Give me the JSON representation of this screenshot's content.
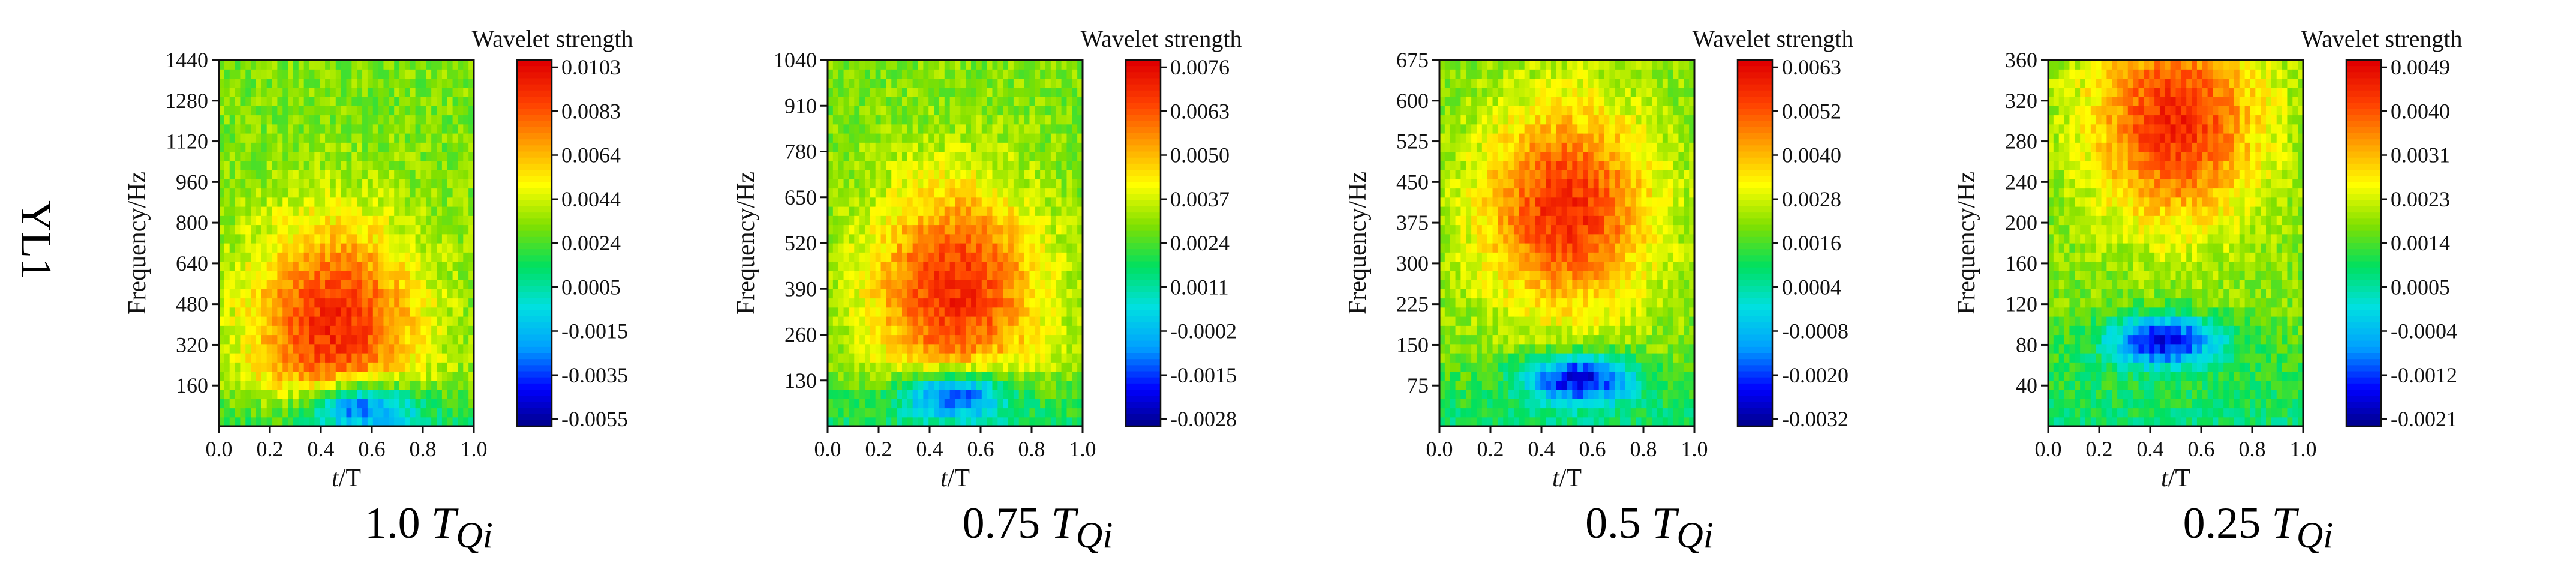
{
  "row_label": "YL1",
  "colors": {
    "scale": [
      "#000080",
      "#0000ff",
      "#00a0ff",
      "#00e0e0",
      "#00e060",
      "#80e000",
      "#ffff00",
      "#ffa000",
      "#ff4000",
      "#e00000"
    ],
    "axis": "#111111"
  },
  "chart_data": [
    {
      "type": "heatmap",
      "caption": {
        "main": "1.0 ",
        "var": "T",
        "sub": "Qi"
      },
      "xlabel_var": "t",
      "xlabel_rest": "/T",
      "ylabel": "Frequency/Hz",
      "xlim": [
        0,
        1
      ],
      "ylim": [
        0,
        1440
      ],
      "x_ticks": [
        "0.0",
        "0.2",
        "0.4",
        "0.6",
        "0.8",
        "1.0"
      ],
      "y_ticks": [
        160,
        320,
        480,
        640,
        800,
        960,
        1120,
        1280,
        1440
      ],
      "colorbar_title": "Wavelet strength",
      "colorbar_ticks": [
        "0.0103",
        "0.0083",
        "0.0064",
        "0.0044",
        "0.0024",
        "0.0005",
        "-0.0015",
        "-0.0035",
        "-0.0055"
      ],
      "hot_center": [
        0.45,
        400
      ],
      "cold_band": [
        0.55,
        80
      ]
    },
    {
      "type": "heatmap",
      "caption": {
        "main": "0.75 ",
        "var": "T",
        "sub": "Qi"
      },
      "xlabel_var": "t",
      "xlabel_rest": "/T",
      "ylabel": "Frequency/Hz",
      "xlim": [
        0,
        1
      ],
      "ylim": [
        0,
        1040
      ],
      "x_ticks": [
        "0.0",
        "0.2",
        "0.4",
        "0.6",
        "0.8",
        "1.0"
      ],
      "y_ticks": [
        130,
        260,
        390,
        520,
        650,
        780,
        910,
        1040
      ],
      "colorbar_title": "Wavelet strength",
      "colorbar_ticks": [
        "0.0076",
        "0.0063",
        "0.0050",
        "0.0037",
        "0.0024",
        "0.0011",
        "-0.0002",
        "-0.0015",
        "-0.0028"
      ],
      "hot_center": [
        0.5,
        390
      ],
      "cold_band": [
        0.5,
        90
      ]
    },
    {
      "type": "heatmap",
      "caption": {
        "main": "0.5 ",
        "var": "T",
        "sub": "Qi"
      },
      "xlabel_var": "t",
      "xlabel_rest": "/T",
      "ylabel": "Frequency/Hz",
      "xlim": [
        0,
        1
      ],
      "ylim": [
        0,
        675
      ],
      "x_ticks": [
        "0.0",
        "0.2",
        "0.4",
        "0.6",
        "0.8",
        "1.0"
      ],
      "y_ticks": [
        75,
        150,
        225,
        300,
        375,
        450,
        525,
        600,
        675
      ],
      "colorbar_title": "Wavelet strength",
      "colorbar_ticks": [
        "0.0063",
        "0.0052",
        "0.0040",
        "0.0028",
        "0.0016",
        "0.0004",
        "-0.0008",
        "-0.0020",
        "-0.0032"
      ],
      "hot_center": [
        0.5,
        400
      ],
      "cold_band": [
        0.55,
        90
      ]
    },
    {
      "type": "heatmap",
      "caption": {
        "main": "0.25 ",
        "var": "T",
        "sub": "Qi"
      },
      "xlabel_var": "t",
      "xlabel_rest": "/T",
      "ylabel": "Frequency/Hz",
      "xlim": [
        0,
        1
      ],
      "ylim": [
        0,
        360
      ],
      "x_ticks": [
        "0.0",
        "0.2",
        "0.4",
        "0.6",
        "0.8",
        "1.0"
      ],
      "y_ticks": [
        40,
        80,
        120,
        160,
        200,
        240,
        280,
        320,
        360
      ],
      "colorbar_title": "Wavelet strength",
      "colorbar_ticks": [
        "0.0049",
        "0.0040",
        "0.0031",
        "0.0023",
        "0.0014",
        "0.0005",
        "-0.0004",
        "-0.0012",
        "-0.0021"
      ],
      "hot_center": [
        0.5,
        300
      ],
      "cold_band": [
        0.45,
        85
      ]
    }
  ]
}
